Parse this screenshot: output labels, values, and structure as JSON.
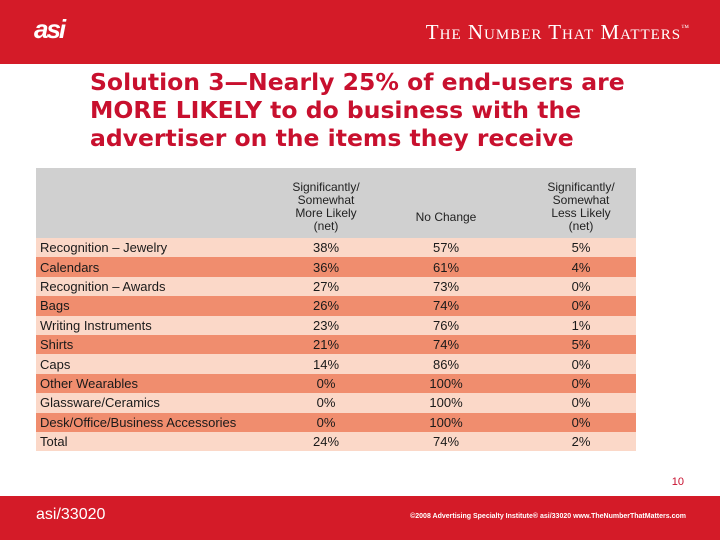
{
  "header": {
    "logo_text": "asi",
    "tagline": "The Number That Matters",
    "trademark": "™"
  },
  "title": "Solution 3—Nearly 25% of end-users are MORE LIKELY to do business with the advertiser on the items they receive",
  "table": {
    "columns": [
      "",
      "Significantly/ Somewhat More Likely (net)",
      "No Change",
      "Significantly/ Somewhat Less Likely (net)"
    ],
    "column_lines": {
      "more": [
        "Significantly/",
        "Somewhat",
        "More Likely",
        "(net)"
      ],
      "less": [
        "Significantly/",
        "Somewhat",
        "Less Likely",
        "(net)"
      ]
    },
    "rows": [
      {
        "category": "Recognition – Jewelry",
        "more": "38%",
        "no_change": "57%",
        "less": "5%"
      },
      {
        "category": "Calendars",
        "more": "36%",
        "no_change": "61%",
        "less": "4%"
      },
      {
        "category": "Recognition – Awards",
        "more": "27%",
        "no_change": "73%",
        "less": "0%"
      },
      {
        "category": "Bags",
        "more": "26%",
        "no_change": "74%",
        "less": "0%"
      },
      {
        "category": "Writing Instruments",
        "more": "23%",
        "no_change": "76%",
        "less": "1%"
      },
      {
        "category": "Shirts",
        "more": "21%",
        "no_change": "74%",
        "less": "5%"
      },
      {
        "category": "Caps",
        "more": "14%",
        "no_change": "86%",
        "less": "0%"
      },
      {
        "category": "Other Wearables",
        "more": "0%",
        "no_change": "100%",
        "less": "0%"
      },
      {
        "category": "Glassware/Ceramics",
        "more": "0%",
        "no_change": "100%",
        "less": "0%"
      },
      {
        "category": "Desk/Office/Business Accessories",
        "more": "0%",
        "no_change": "100%",
        "less": "0%"
      },
      {
        "category": "Total",
        "more": "24%",
        "no_change": "74%",
        "less": "2%"
      }
    ]
  },
  "page_number": "10",
  "footer": {
    "code": "asi/33020",
    "copyright": "©2008 Advertising Specialty Institute® asi/33020   www.TheNumberThatMatters.com"
  },
  "colors": {
    "brand_red": "#d41b28",
    "title_red": "#c8102e",
    "row_light": "#fbd8c8",
    "row_dark": "#f08d6e",
    "header_gray": "#d0d0d0"
  }
}
